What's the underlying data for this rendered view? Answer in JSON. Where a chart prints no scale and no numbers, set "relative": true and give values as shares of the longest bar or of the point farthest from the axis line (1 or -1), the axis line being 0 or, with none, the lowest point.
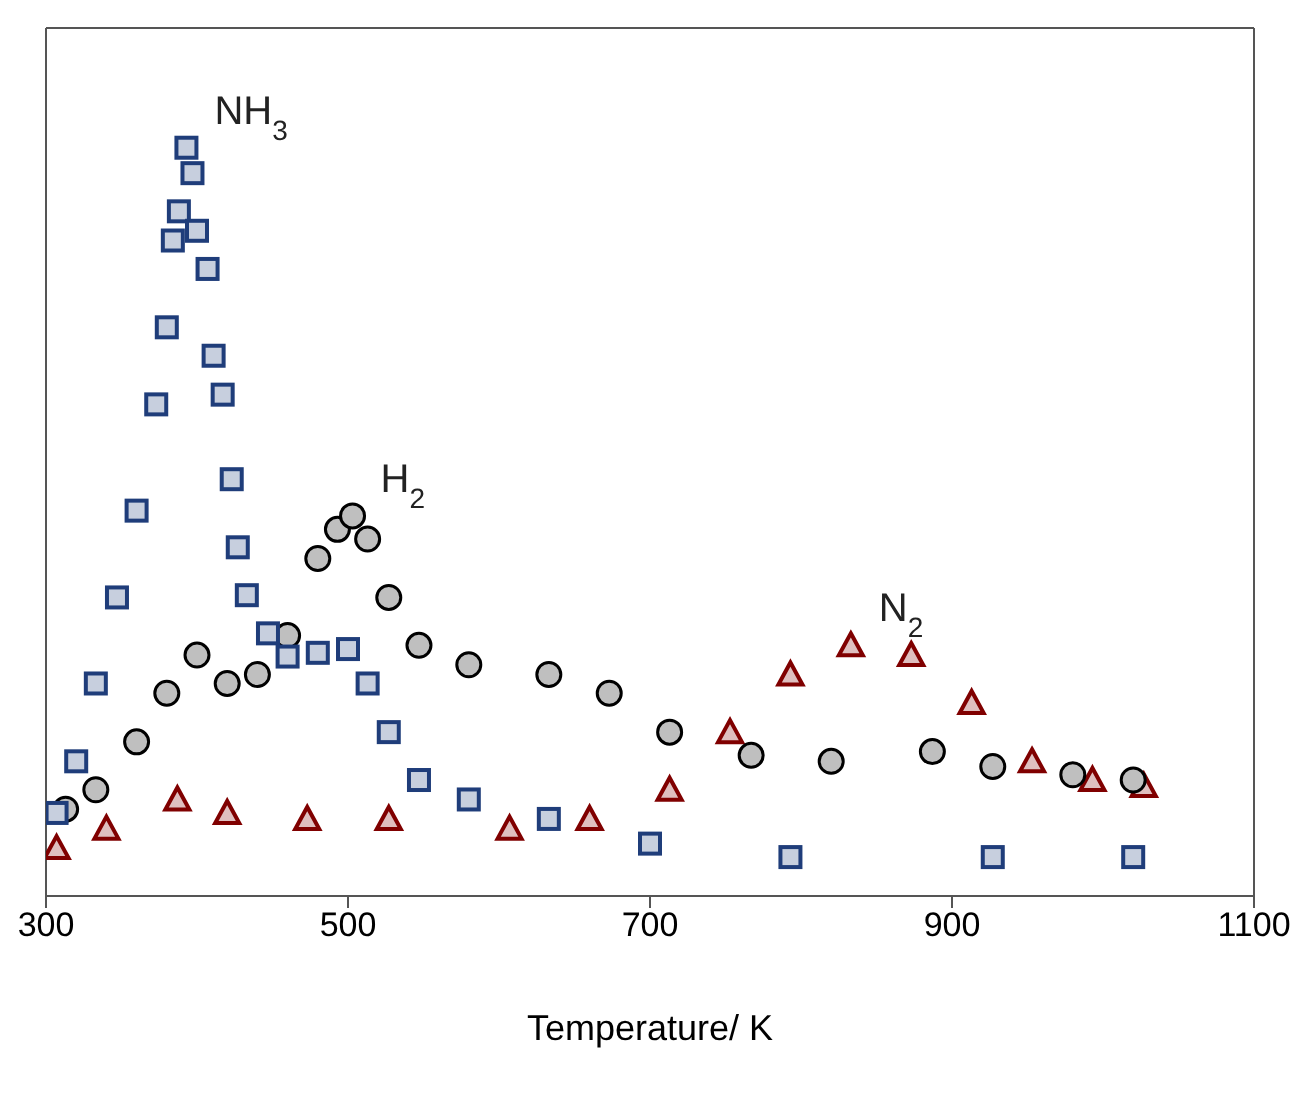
{
  "chart_data": {
    "type": "scatter",
    "relative": true,
    "xlabel": "Temperature/ K",
    "xlim": [
      300,
      1100
    ],
    "xticks": [
      300,
      500,
      700,
      900,
      1100
    ],
    "grid": false,
    "legend": false,
    "series": [
      {
        "name": "NH$_{3}$",
        "color": "#1f3d7a",
        "marker": "square",
        "x": [
          307,
          320,
          333,
          347,
          360,
          373,
          380,
          384,
          388,
          393,
          397,
          400,
          407,
          411,
          417,
          423,
          427,
          433,
          447,
          460,
          480,
          500,
          513,
          527,
          547,
          580,
          633,
          700,
          793,
          927,
          1020
        ],
        "values": [
          0.111,
          0.18,
          0.284,
          0.399,
          0.515,
          0.657,
          0.76,
          0.876,
          0.915,
          1,
          0.966,
          0.889,
          0.838,
          0.722,
          0.67,
          0.557,
          0.466,
          0.402,
          0.351,
          0.32,
          0.325,
          0.33,
          0.284,
          0.219,
          0.155,
          0.129,
          0.103,
          0.07,
          0.052,
          0.052,
          0.052
        ]
      },
      {
        "name": "H$_{2}$",
        "color": "#000000",
        "marker": "circle",
        "x": [
          313,
          333,
          360,
          380,
          400,
          420,
          440,
          460,
          480,
          493,
          503,
          513,
          527,
          547,
          580,
          633,
          673,
          713,
          767,
          820,
          887,
          927,
          980,
          1020
        ],
        "values": [
          0.116,
          0.142,
          0.206,
          0.271,
          0.322,
          0.284,
          0.296,
          0.348,
          0.451,
          0.49,
          0.508,
          0.477,
          0.399,
          0.335,
          0.309,
          0.296,
          0.271,
          0.219,
          0.188,
          0.18,
          0.193,
          0.173,
          0.162,
          0.155
        ]
      },
      {
        "name": "N$_{2}$",
        "color": "#800000",
        "marker": "triangle",
        "x": [
          307,
          340,
          387,
          420,
          473,
          527,
          607,
          660,
          713,
          753,
          793,
          833,
          873,
          913,
          953,
          993,
          1027
        ],
        "values": [
          0.064,
          0.09,
          0.129,
          0.111,
          0.103,
          0.103,
          0.09,
          0.103,
          0.142,
          0.219,
          0.296,
          0.335,
          0.322,
          0.258,
          0.18,
          0.155,
          0.147
        ]
      }
    ]
  }
}
